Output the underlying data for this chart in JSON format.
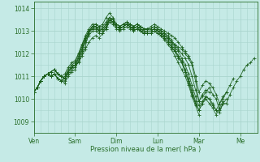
{
  "title": "",
  "xlabel": "Pression niveau de la mer( hPa )",
  "ylabel": "",
  "bg_color": "#c5eae6",
  "plot_bg_color": "#c5eae6",
  "line_color": "#1a5e1a",
  "xlim": [
    0,
    130
  ],
  "ylim": [
    1008.5,
    1014.3
  ],
  "yticks": [
    1009,
    1010,
    1011,
    1012,
    1013,
    1014
  ],
  "xtick_labels": [
    "Ven",
    "Sam",
    "Dim",
    "Lun",
    "Mar",
    "Me"
  ],
  "xtick_positions": [
    0,
    24,
    48,
    72,
    96,
    120
  ],
  "grid_major_color": "#aad5ce",
  "grid_minor_color": "#aad5ce",
  "font_color": "#2a6e2a",
  "font_size": 5.5,
  "series": [
    {
      "x": [
        0,
        2,
        4,
        6,
        8,
        10,
        12,
        14,
        16,
        18,
        20,
        22,
        24,
        26,
        28,
        30,
        32,
        34,
        36,
        38,
        40,
        42,
        44,
        46,
        48,
        50,
        52,
        54,
        56,
        58,
        60,
        62,
        64,
        66,
        68,
        70,
        72,
        74,
        76,
        78,
        80,
        82,
        84,
        86,
        88,
        90,
        92,
        94,
        96,
        98,
        100,
        102,
        104,
        106,
        108,
        110,
        112,
        114,
        116,
        118,
        120,
        122,
        124,
        126,
        128
      ],
      "y": [
        1010.3,
        1010.5,
        1010.8,
        1011.0,
        1011.1,
        1011.2,
        1011.3,
        1011.1,
        1011.0,
        1010.9,
        1011.2,
        1011.4,
        1011.5,
        1011.6,
        1012.0,
        1012.3,
        1013.0,
        1013.1,
        1013.2,
        1013.0,
        1013.1,
        1013.3,
        1013.5,
        1013.4,
        1013.2,
        1013.1,
        1013.2,
        1013.3,
        1013.2,
        1013.0,
        1013.1,
        1013.0,
        1012.9,
        1013.0,
        1013.0,
        1013.1,
        1013.0,
        1012.9,
        1012.8,
        1012.7,
        1012.5,
        1012.4,
        1012.3,
        1012.2,
        1012.0,
        1011.8,
        1011.5,
        1010.8,
        1009.9,
        1010.1,
        1010.3,
        1010.5,
        1010.2,
        1010.0,
        1009.5,
        1009.8,
        1009.8,
        1010.2,
        1010.5,
        1010.8,
        1011.0,
        1011.3,
        1011.5,
        1011.6,
        1011.8
      ]
    },
    {
      "x": [
        0,
        2,
        4,
        6,
        8,
        10,
        12,
        14,
        16,
        18,
        20,
        22,
        24,
        26,
        28,
        30,
        32,
        34,
        36,
        38,
        40,
        42,
        44,
        46,
        48,
        50,
        52,
        54,
        56,
        58,
        60,
        62,
        64,
        66,
        68,
        70,
        72,
        74,
        76,
        78,
        80,
        82,
        84,
        86,
        88,
        90,
        92,
        94,
        96,
        98,
        100,
        102,
        104,
        106,
        108,
        110,
        112
      ],
      "y": [
        1010.3,
        1010.5,
        1010.8,
        1011.0,
        1011.1,
        1011.2,
        1011.3,
        1011.1,
        1011.0,
        1010.9,
        1011.2,
        1011.4,
        1011.5,
        1011.6,
        1011.9,
        1012.2,
        1012.5,
        1012.7,
        1012.8,
        1012.7,
        1012.9,
        1013.1,
        1013.5,
        1013.4,
        1013.2,
        1013.1,
        1013.2,
        1013.3,
        1013.2,
        1013.1,
        1013.2,
        1013.1,
        1013.0,
        1013.0,
        1013.0,
        1013.1,
        1013.0,
        1012.9,
        1012.7,
        1012.5,
        1012.3,
        1012.1,
        1011.9,
        1011.6,
        1011.2,
        1010.7,
        1010.2,
        1009.8,
        1009.5,
        1009.8,
        1010.1,
        1010.0,
        1009.8,
        1009.5,
        1009.4,
        1009.8,
        1010.0
      ]
    },
    {
      "x": [
        0,
        2,
        4,
        6,
        8,
        10,
        12,
        14,
        16,
        18,
        20,
        22,
        24,
        26,
        28,
        30,
        32,
        34,
        36,
        38,
        40,
        42,
        44,
        46,
        48,
        50,
        52,
        54,
        56,
        58,
        60,
        62,
        64,
        66,
        68,
        70,
        72,
        74,
        76,
        78,
        80,
        82,
        84,
        86,
        88,
        90,
        92,
        94,
        96,
        98,
        100,
        102
      ],
      "y": [
        1010.3,
        1010.5,
        1010.8,
        1011.0,
        1011.1,
        1011.2,
        1011.3,
        1011.1,
        1011.0,
        1010.9,
        1011.2,
        1011.4,
        1011.5,
        1011.8,
        1012.2,
        1012.6,
        1012.9,
        1013.2,
        1013.3,
        1013.2,
        1013.3,
        1013.6,
        1013.8,
        1013.6,
        1013.3,
        1013.2,
        1013.3,
        1013.4,
        1013.3,
        1013.2,
        1013.3,
        1013.2,
        1013.1,
        1013.1,
        1013.1,
        1013.2,
        1013.1,
        1013.0,
        1012.9,
        1012.8,
        1012.6,
        1012.4,
        1012.2,
        1012.0,
        1011.8,
        1011.5,
        1011.0,
        1010.4,
        1009.9,
        1010.2,
        1010.4,
        1010.3
      ]
    },
    {
      "x": [
        0,
        2,
        4,
        6,
        8,
        10,
        12,
        14,
        16,
        18,
        20,
        22,
        24,
        26,
        28,
        30,
        32,
        34,
        36,
        38,
        40,
        42,
        44,
        46,
        48,
        50,
        52,
        54,
        56,
        58,
        60,
        62,
        64,
        66,
        68,
        70,
        72,
        74,
        76,
        78,
        80,
        82,
        84,
        86,
        88,
        90,
        92,
        94,
        96,
        98,
        100,
        102,
        104,
        106,
        108,
        110,
        112,
        114,
        116
      ],
      "y": [
        1010.3,
        1010.5,
        1010.8,
        1011.0,
        1011.1,
        1011.2,
        1011.3,
        1011.1,
        1011.0,
        1011.1,
        1011.4,
        1011.6,
        1011.7,
        1012.0,
        1012.4,
        1012.7,
        1013.0,
        1013.2,
        1013.2,
        1013.0,
        1013.0,
        1013.2,
        1013.5,
        1013.4,
        1013.2,
        1013.1,
        1013.2,
        1013.3,
        1013.3,
        1013.2,
        1013.3,
        1013.2,
        1013.1,
        1013.1,
        1013.2,
        1013.3,
        1013.2,
        1013.1,
        1013.0,
        1012.9,
        1012.8,
        1012.7,
        1012.5,
        1012.3,
        1012.1,
        1011.9,
        1011.6,
        1011.0,
        1010.3,
        1010.6,
        1010.8,
        1010.7,
        1010.5,
        1010.2,
        1009.8,
        1010.0,
        1010.3,
        1010.6,
        1010.9
      ]
    },
    {
      "x": [
        0,
        2,
        4,
        6,
        8,
        10,
        12,
        14,
        16,
        18,
        20,
        22,
        24,
        26,
        28,
        30,
        32,
        34,
        36,
        38,
        40,
        42,
        44,
        46,
        48,
        50,
        52,
        54,
        56,
        58,
        60,
        62,
        64,
        66,
        68,
        70,
        72,
        74,
        76,
        78,
        80,
        82,
        84,
        86,
        88,
        90,
        92,
        94,
        96
      ],
      "y": [
        1010.3,
        1010.5,
        1010.8,
        1011.0,
        1011.1,
        1011.0,
        1011.1,
        1010.9,
        1010.8,
        1011.0,
        1011.3,
        1011.5,
        1011.6,
        1012.0,
        1012.4,
        1012.8,
        1013.1,
        1013.3,
        1013.3,
        1013.2,
        1013.2,
        1013.4,
        1013.6,
        1013.5,
        1013.3,
        1013.2,
        1013.3,
        1013.3,
        1013.2,
        1013.1,
        1013.2,
        1013.0,
        1012.9,
        1012.9,
        1012.9,
        1013.0,
        1012.9,
        1012.8,
        1012.6,
        1012.4,
        1012.2,
        1011.9,
        1011.6,
        1011.3,
        1011.0,
        1010.6,
        1010.1,
        1009.7,
        1009.3
      ]
    },
    {
      "x": [
        0,
        2,
        4,
        6,
        8,
        10,
        12,
        14,
        16,
        18,
        20,
        22,
        24,
        26,
        28,
        30,
        32,
        34,
        36,
        38,
        40,
        42,
        44,
        46,
        48,
        50,
        52,
        54,
        56,
        58,
        60,
        62,
        64,
        66,
        68,
        70,
        72,
        74,
        76,
        78,
        80,
        82,
        84,
        86,
        88,
        90,
        92,
        94,
        96,
        98,
        100,
        102,
        104,
        106,
        108,
        110,
        112
      ],
      "y": [
        1010.3,
        1010.5,
        1010.8,
        1011.0,
        1011.1,
        1011.0,
        1011.1,
        1010.9,
        1010.8,
        1010.9,
        1011.2,
        1011.4,
        1011.5,
        1011.9,
        1012.3,
        1012.7,
        1013.0,
        1013.2,
        1013.2,
        1013.1,
        1013.1,
        1013.3,
        1013.6,
        1013.5,
        1013.3,
        1013.2,
        1013.3,
        1013.4,
        1013.3,
        1013.2,
        1013.3,
        1013.2,
        1013.1,
        1013.1,
        1013.1,
        1013.2,
        1013.1,
        1013.0,
        1012.9,
        1012.7,
        1012.5,
        1012.3,
        1012.1,
        1011.8,
        1011.5,
        1011.1,
        1010.6,
        1010.1,
        1009.7,
        1009.9,
        1010.1,
        1010.0,
        1009.7,
        1009.5,
        1009.8,
        1010.1,
        1010.3
      ]
    },
    {
      "x": [
        0,
        2,
        4,
        6,
        8,
        10,
        12,
        14,
        16,
        18,
        20,
        22,
        24,
        26,
        28,
        30,
        32,
        34,
        36,
        38,
        40,
        42,
        44,
        46,
        48,
        50,
        52,
        54,
        56,
        58,
        60,
        62,
        64,
        66,
        68,
        70,
        72,
        74,
        76,
        78,
        80,
        82,
        84,
        86,
        88,
        90,
        92,
        94,
        96,
        98,
        100,
        102,
        104,
        106,
        108,
        110
      ],
      "y": [
        1010.3,
        1010.5,
        1010.8,
        1011.0,
        1011.1,
        1011.0,
        1011.1,
        1010.9,
        1010.8,
        1010.8,
        1011.1,
        1011.3,
        1011.4,
        1011.8,
        1012.2,
        1012.6,
        1012.9,
        1013.1,
        1013.1,
        1013.0,
        1013.0,
        1013.2,
        1013.5,
        1013.4,
        1013.2,
        1013.1,
        1013.2,
        1013.3,
        1013.2,
        1013.1,
        1013.2,
        1013.1,
        1013.0,
        1013.0,
        1013.0,
        1013.1,
        1013.0,
        1012.9,
        1012.8,
        1012.6,
        1012.4,
        1012.2,
        1011.9,
        1011.7,
        1011.3,
        1010.9,
        1010.4,
        1009.9,
        1009.5,
        1009.8,
        1010.0,
        1009.8,
        1009.6,
        1009.3,
        1009.6,
        1009.9
      ]
    },
    {
      "x": [
        0,
        2,
        4,
        6,
        8,
        10,
        12,
        14,
        16,
        18,
        20,
        22,
        24,
        26,
        28,
        30,
        32,
        34,
        36,
        38,
        40,
        42,
        44,
        46,
        48,
        50,
        52,
        54,
        56,
        58,
        60,
        62,
        64,
        66,
        68,
        70,
        72,
        74,
        76,
        78,
        80,
        82,
        84,
        86,
        88,
        90,
        92,
        94
      ],
      "y": [
        1010.3,
        1010.5,
        1010.8,
        1011.0,
        1011.1,
        1011.0,
        1011.1,
        1010.9,
        1010.8,
        1010.7,
        1011.0,
        1011.2,
        1011.3,
        1011.7,
        1012.1,
        1012.5,
        1012.8,
        1013.0,
        1013.0,
        1012.9,
        1012.9,
        1013.1,
        1013.4,
        1013.3,
        1013.1,
        1013.0,
        1013.1,
        1013.2,
        1013.1,
        1013.0,
        1013.1,
        1013.0,
        1012.9,
        1012.9,
        1012.9,
        1013.0,
        1012.9,
        1012.8,
        1012.7,
        1012.5,
        1012.3,
        1012.1,
        1011.8,
        1011.6,
        1011.2,
        1010.8,
        1010.3,
        1009.8
      ]
    }
  ]
}
